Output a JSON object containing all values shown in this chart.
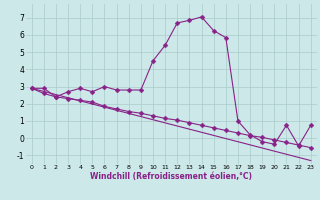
{
  "xlabel": "Windchill (Refroidissement éolien,°C)",
  "background_color": "#cce8e8",
  "line_color": "#882288",
  "grid_color": "#aacccc",
  "xlim": [
    -0.5,
    23.5
  ],
  "ylim": [
    -1.5,
    7.8
  ],
  "yticks": [
    -1,
    0,
    1,
    2,
    3,
    4,
    5,
    6,
    7
  ],
  "xticks": [
    0,
    1,
    2,
    3,
    4,
    5,
    6,
    7,
    8,
    9,
    10,
    11,
    12,
    13,
    14,
    15,
    16,
    17,
    18,
    19,
    20,
    21,
    22,
    23
  ],
  "series1_x": [
    0,
    1,
    2,
    3,
    4,
    5,
    6,
    7,
    8,
    9,
    10,
    11,
    12,
    13,
    14,
    15,
    16,
    17,
    18,
    19,
    20,
    21,
    22,
    23
  ],
  "series1_y": [
    2.9,
    2.9,
    2.4,
    2.7,
    2.9,
    2.7,
    3.0,
    2.8,
    2.8,
    2.8,
    4.5,
    5.4,
    6.7,
    6.85,
    7.05,
    6.25,
    5.85,
    1.0,
    0.2,
    -0.2,
    -0.35,
    0.75,
    -0.45,
    0.75
  ],
  "series2_x": [
    0,
    1,
    2,
    3,
    4,
    5,
    6,
    7,
    8,
    9,
    10,
    11,
    12,
    13,
    14,
    15,
    16,
    17,
    18,
    19,
    20,
    21,
    22,
    23
  ],
  "series2_y": [
    2.9,
    2.6,
    2.4,
    2.3,
    2.2,
    2.1,
    1.85,
    1.7,
    1.55,
    1.45,
    1.3,
    1.15,
    1.05,
    0.9,
    0.75,
    0.6,
    0.45,
    0.3,
    0.15,
    0.05,
    -0.1,
    -0.25,
    -0.4,
    -0.55
  ],
  "series3_x": [
    0,
    23
  ],
  "series3_y": [
    2.9,
    -1.3
  ],
  "marker_size": 2.5,
  "line_width": 0.8
}
